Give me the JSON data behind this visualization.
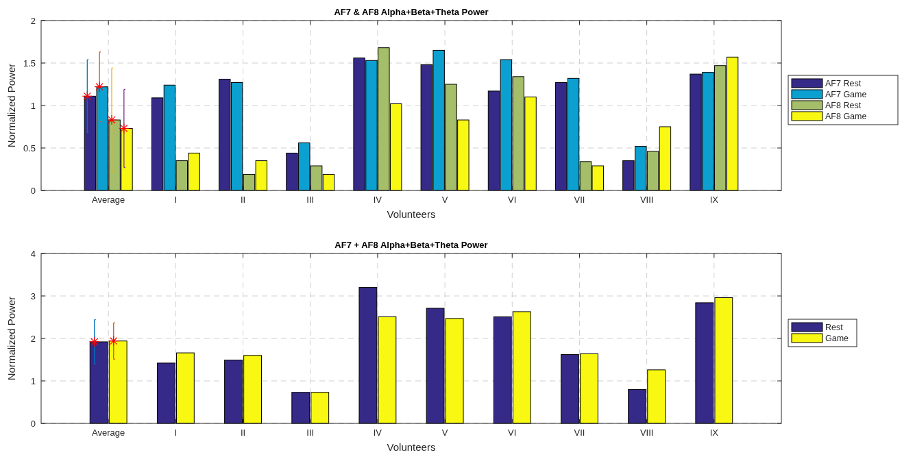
{
  "chart_data": [
    {
      "type": "bar",
      "title": "AF7 & AF8 Alpha+Beta+Theta Power",
      "xlabel": "Volunteers",
      "ylabel": "Normalized Power",
      "categories": [
        "Average",
        "I",
        "II",
        "III",
        "IV",
        "V",
        "VI",
        "VII",
        "VIII",
        "IX"
      ],
      "series": [
        {
          "name": "AF7 Rest",
          "color": "#352a87",
          "values": [
            1.11,
            1.09,
            1.31,
            0.44,
            1.56,
            1.48,
            1.17,
            1.27,
            0.35,
            1.37
          ]
        },
        {
          "name": "AF7 Game",
          "color": "#0ba0d0",
          "values": [
            1.22,
            1.24,
            1.27,
            0.56,
            1.53,
            1.65,
            1.54,
            1.32,
            0.52,
            1.39
          ]
        },
        {
          "name": "AF8 Rest",
          "color": "#a5be6a",
          "values": [
            0.83,
            0.35,
            0.19,
            0.29,
            1.68,
            1.25,
            1.34,
            0.34,
            0.46,
            1.47
          ]
        },
        {
          "name": "AF8 Game",
          "color": "#f8f812",
          "values": [
            0.73,
            0.44,
            0.35,
            0.19,
            1.02,
            0.83,
            1.1,
            0.29,
            0.75,
            1.57
          ]
        },
        {
          "type": "scatter",
          "color": "#ff0000",
          "marker": "cross",
          "x": [
            "Average"
          ],
          "values": [
            1.11
          ],
          "errors": [
            0.43
          ]
        },
        {
          "type": "scatter",
          "color": "#ff0000",
          "marker": "cross",
          "x": [
            "Average"
          ],
          "values": [
            1.22
          ],
          "errors": [
            0.41
          ]
        },
        {
          "type": "scatter",
          "color": "#ff0000",
          "marker": "cross",
          "x": [
            "Average"
          ],
          "values": [
            0.83
          ],
          "errors": [
            0.61
          ]
        },
        {
          "type": "scatter",
          "color": "#ff0000",
          "marker": "cross",
          "x": [
            "Average"
          ],
          "values": [
            0.73
          ],
          "errors": [
            0.46
          ]
        }
      ],
      "ylim": [
        0,
        2
      ],
      "yticks": [
        0,
        0.5,
        1,
        1.5,
        2
      ],
      "grid": true,
      "legend": "right"
    },
    {
      "type": "bar",
      "title": "AF7 + AF8 Alpha+Beta+Theta Power",
      "xlabel": "Volunteers",
      "ylabel": "Normalized Power",
      "categories": [
        "Average",
        "I",
        "II",
        "III",
        "IV",
        "V",
        "VI",
        "VII",
        "VIII",
        "IX"
      ],
      "series": [
        {
          "name": "Rest",
          "color": "#352a87",
          "values": [
            1.92,
            1.42,
            1.49,
            0.73,
            3.2,
            2.71,
            2.51,
            1.62,
            0.8,
            2.84
          ]
        },
        {
          "name": "Game",
          "color": "#f8f812",
          "values": [
            1.94,
            1.66,
            1.6,
            0.73,
            2.51,
            2.47,
            2.63,
            1.64,
            1.26,
            2.96
          ]
        },
        {
          "type": "scatter",
          "color": "#ff0000",
          "marker": "cross",
          "x": [
            "Average"
          ],
          "values": [
            1.92
          ],
          "errors": [
            0.52
          ]
        },
        {
          "type": "scatter",
          "color": "#ff0000",
          "marker": "cross",
          "x": [
            "Average"
          ],
          "values": [
            1.94
          ],
          "errors": [
            0.43
          ]
        }
      ],
      "ylim": [
        0,
        4
      ],
      "yticks": [
        0,
        1,
        2,
        3,
        4
      ],
      "grid": true,
      "legend": "right"
    }
  ]
}
